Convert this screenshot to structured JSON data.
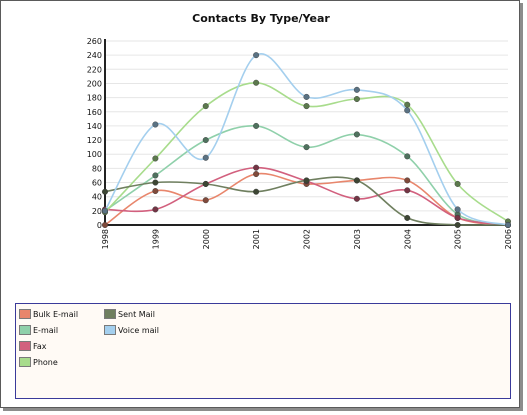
{
  "chart_data": {
    "type": "line",
    "title": "Contacts By Type/Year",
    "x": [
      "1998",
      "1999",
      "2000",
      "2001",
      "2002",
      "2003",
      "2004",
      "2005",
      "2006"
    ],
    "ylim": [
      0,
      260
    ],
    "yticks": [
      0,
      20,
      40,
      60,
      80,
      100,
      120,
      140,
      160,
      180,
      200,
      220,
      240,
      260
    ],
    "grid": true,
    "legend_position": "bottom",
    "series": [
      {
        "name": "Bulk E-mail",
        "color": "#e8866c",
        "values": [
          0,
          48,
          35,
          72,
          58,
          63,
          63,
          10,
          0
        ]
      },
      {
        "name": "E-mail",
        "color": "#8fd0aa",
        "values": [
          20,
          70,
          120,
          140,
          110,
          128,
          97,
          15,
          0
        ]
      },
      {
        "name": "Fax",
        "color": "#d2607e",
        "values": [
          22,
          22,
          58,
          81,
          62,
          37,
          49,
          10,
          0
        ]
      },
      {
        "name": "Phone",
        "color": "#a8dc8c",
        "values": [
          18,
          94,
          168,
          201,
          168,
          178,
          170,
          58,
          5
        ]
      },
      {
        "name": "Sent Mail",
        "color": "#6f7f5f",
        "values": [
          47,
          60,
          58,
          47,
          63,
          63,
          10,
          0,
          0
        ]
      },
      {
        "name": "Voice mail",
        "color": "#a4cfee",
        "values": [
          20,
          142,
          95,
          240,
          181,
          191,
          162,
          22,
          0
        ]
      }
    ]
  }
}
